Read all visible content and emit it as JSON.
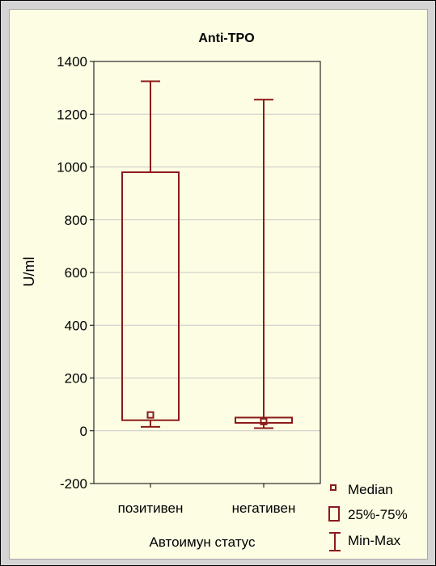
{
  "chart_data": {
    "type": "boxplot",
    "title": "Anti-TPO",
    "xlabel": "Автоимун статус",
    "ylabel": "U/ml",
    "ylim": [
      -200,
      1400
    ],
    "yticks": [
      -200,
      0,
      200,
      400,
      600,
      800,
      1000,
      1200,
      1400
    ],
    "grid": true,
    "categories": [
      "позитивен",
      "негативен"
    ],
    "boxes": [
      {
        "category": "позитивен",
        "min": 15,
        "q1": 40,
        "median": 60,
        "q3": 980,
        "max": 1325
      },
      {
        "category": "негативен",
        "min": 10,
        "q1": 30,
        "median": 35,
        "q3": 50,
        "max": 1255
      }
    ],
    "legend": {
      "position": "bottom-right",
      "entries": [
        "Median",
        "25%-75%",
        "Min-Max"
      ]
    },
    "colors": {
      "series": "#8b1a1a",
      "grid": "#c8c8c8",
      "background": "#fdfde4",
      "frame": "#d4d4d4"
    }
  }
}
